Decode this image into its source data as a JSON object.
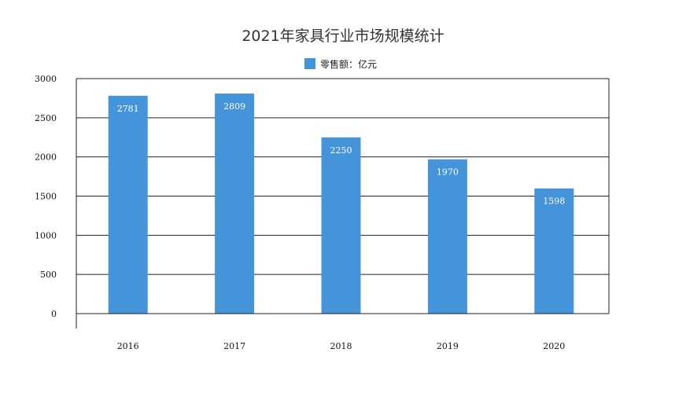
{
  "chart_data": {
    "type": "bar",
    "title": "2021年家具行业市场规模统计",
    "legend": {
      "position": "top",
      "entries": [
        "零售额：亿元"
      ]
    },
    "categories": [
      "2016",
      "2017",
      "2018",
      "2019",
      "2020"
    ],
    "series": [
      {
        "name": "零售额：亿元",
        "values": [
          2781,
          2809,
          2250,
          1970,
          1598
        ],
        "color": "#4594d9"
      }
    ],
    "data_labels": [
      "2781",
      "2809",
      "2250",
      "1970",
      "1598"
    ],
    "xlabel": "",
    "ylabel": "",
    "ylim": [
      0,
      3000
    ],
    "yticks": [
      "0",
      "500",
      "1000",
      "1500",
      "2000",
      "2500",
      "3000"
    ],
    "grid": true
  }
}
